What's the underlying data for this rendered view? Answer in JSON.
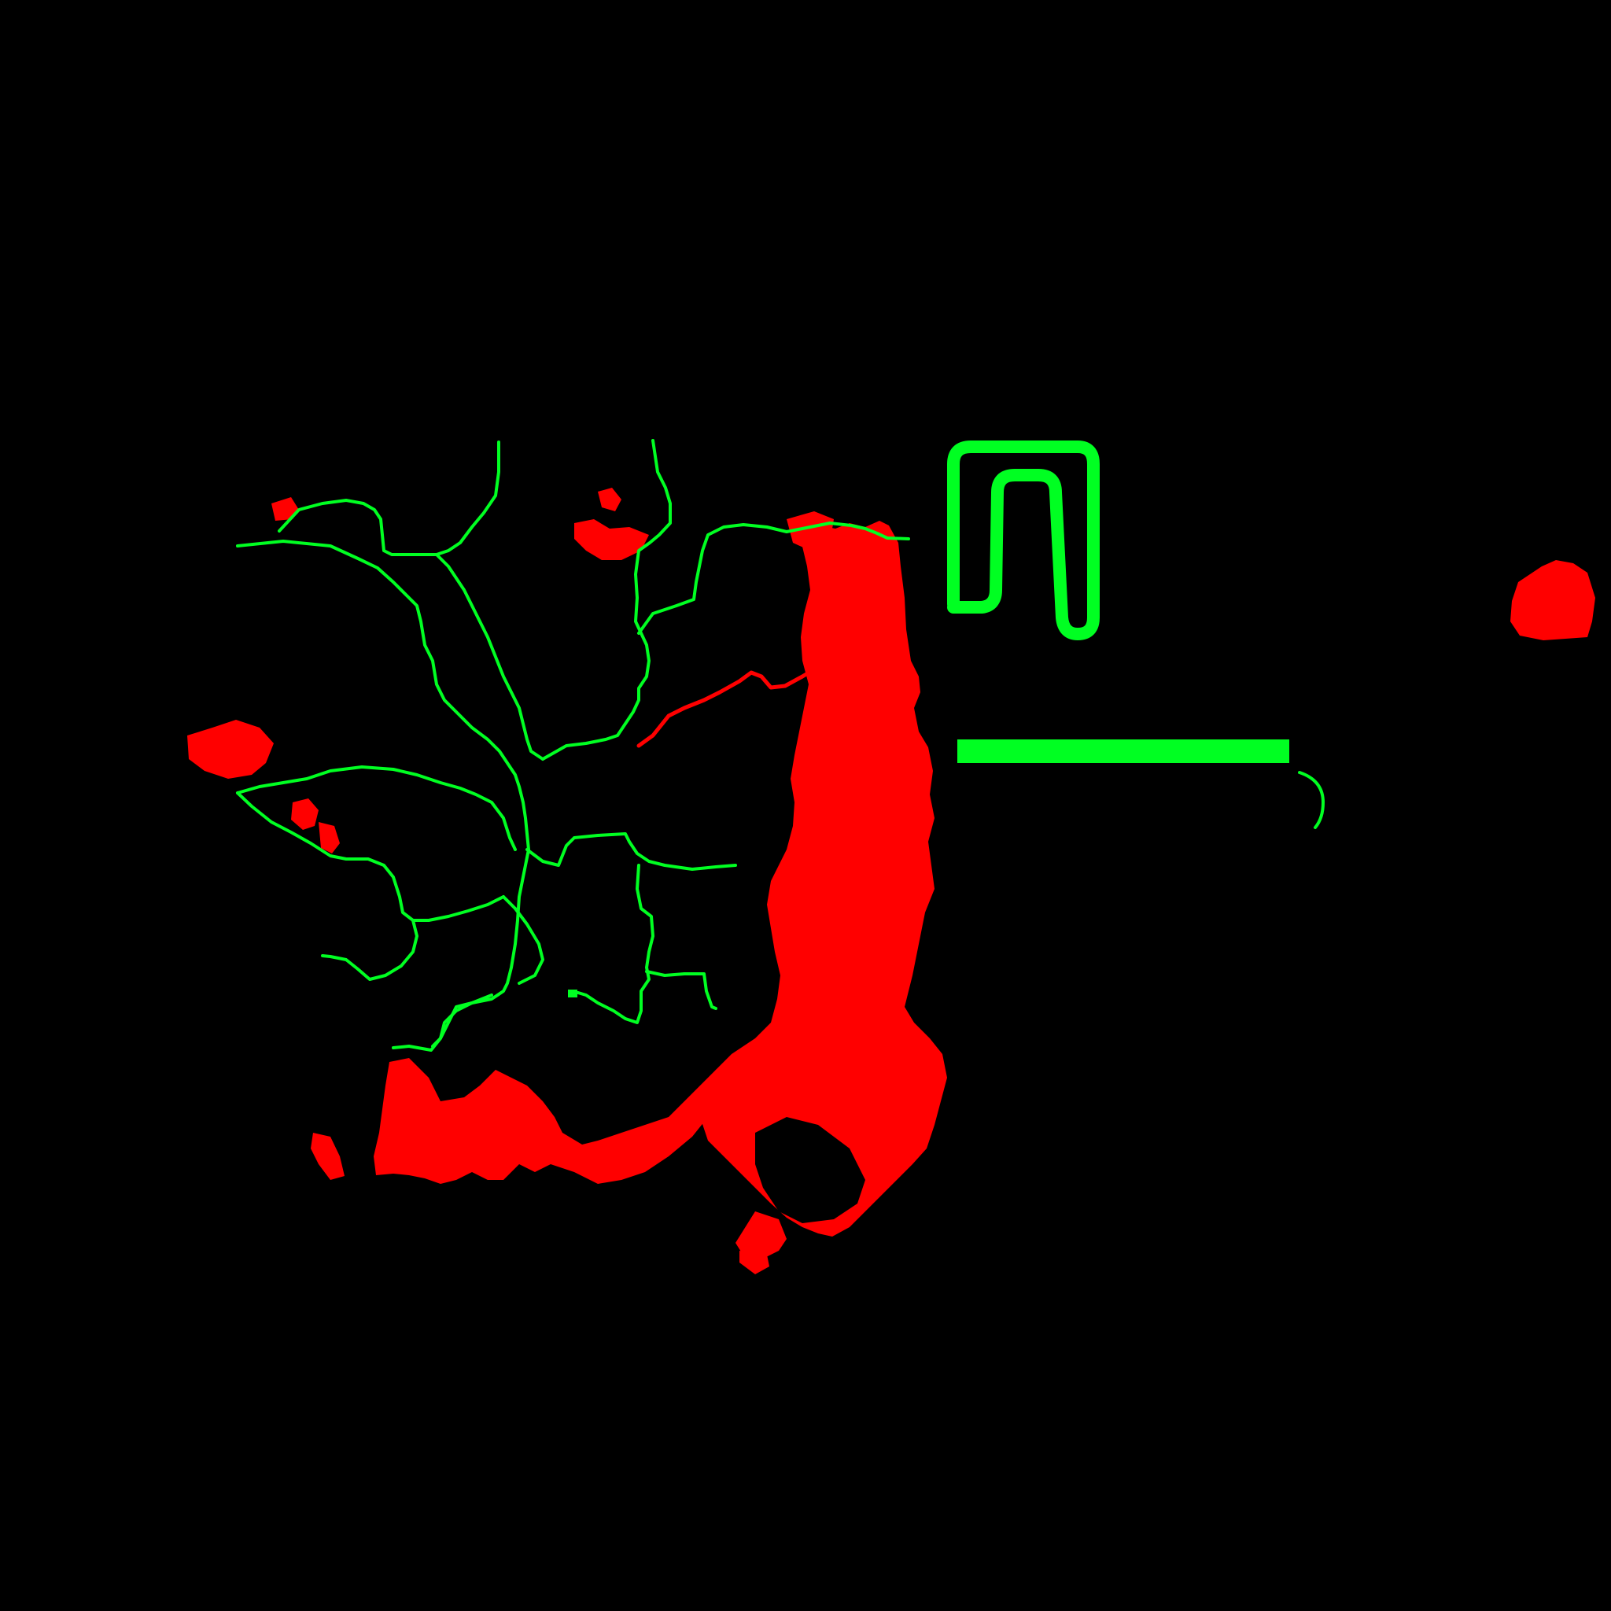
{
  "map": {
    "background_color": "#000000",
    "colors": {
      "green": "#00ff22",
      "red": "#ff0000"
    },
    "features": [
      {
        "name": "river-network",
        "color": "green"
      },
      {
        "name": "highlighted-river-segment",
        "color": "red"
      },
      {
        "name": "flooded-area",
        "color": "red"
      },
      {
        "name": "lake-east",
        "color": "red"
      },
      {
        "name": "u-shaped-channel",
        "color": "green"
      },
      {
        "name": "scale-bar",
        "color": "green"
      },
      {
        "name": "hook-marker",
        "color": "green"
      }
    ]
  }
}
